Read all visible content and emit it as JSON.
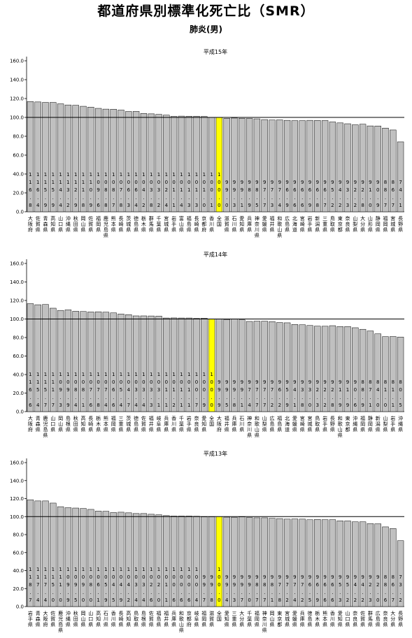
{
  "title": "都道府県別標準化死亡比（SMR）",
  "subtitle": "肺炎(男)",
  "colors": {
    "bar": "#c0c0c0",
    "highlight": "#ffff00",
    "stroke": "#000000"
  },
  "chart_data": [
    {
      "type": "bar",
      "title": "平成15年",
      "xlabel": "",
      "ylabel": "",
      "ylim": [
        0,
        160
      ],
      "yticks": [
        "0.0",
        "20.0",
        "40.0",
        "60.0",
        "80.0",
        "100.0",
        "120.0",
        "140.0",
        "160.0"
      ],
      "reference_line": 100,
      "highlight_category": "全国",
      "categories": [
        "大阪府",
        "佐賀県",
        "青森県",
        "高知県",
        "山口県",
        "沖縄県",
        "秋田県",
        "岡山県",
        "佐賀県",
        "福岡県",
        "鹿児島県",
        "熊本県",
        "長崎県",
        "茨城県",
        "徳島県",
        "栃木県",
        "群馬県",
        "千葉県",
        "宮城県",
        "岩手県",
        "富山県",
        "福島県",
        "長崎県",
        "京都府",
        "香川県",
        "全国",
        "滋賀県",
        "石川県",
        "愛知県",
        "兵庫県",
        "神奈川県",
        "愛媛県",
        "福井県",
        "和歌山県",
        "広島県",
        "北海道",
        "宮崎県",
        "岩手県",
        "新潟県",
        "三重県",
        "鳥取県",
        "東京都",
        "奈良県",
        "山梨県",
        "大分県",
        "山形県",
        "静岡県",
        "福岡県",
        "宮城県",
        "長野県"
      ],
      "values": [
        116.8,
        116.4,
        115.9,
        115.9,
        114.4,
        113.2,
        112.9,
        111.8,
        110.9,
        109.6,
        108.8,
        108.7,
        107.8,
        106.3,
        106.4,
        104.2,
        103.8,
        103.2,
        102.4,
        101.1,
        101.4,
        101.3,
        101.3,
        101.0,
        100.1,
        100.0,
        99.0,
        99.3,
        99.1,
        98.9,
        98.5,
        97.7,
        97.3,
        97.4,
        96.9,
        96.6,
        96.6,
        96.9,
        96.8,
        96.7,
        95.2,
        94.2,
        93.3,
        92.2,
        92.8,
        91.0,
        90.9,
        88.7,
        86.7,
        74.1
      ],
      "values_text": [
        "116.8",
        "116.4",
        "115.9",
        "115.9",
        "114.4",
        "113.2",
        "112.9",
        "111.8",
        "110.9",
        "109.6",
        "108.8",
        "108.7",
        "107.8",
        "106.3",
        "106.4",
        "104.2",
        "103.8",
        "103.2",
        "102.4",
        "101.1",
        "101.4",
        "101.3",
        "101.3",
        "101.0",
        "100.1",
        "100.0",
        "99.0",
        "99.3",
        "99.1",
        "98.9",
        "98.5",
        "97.7",
        "97.3",
        "97.4",
        "96.9",
        "96.6",
        "96.6",
        "96.9",
        "96.8",
        "96.7",
        "95.2",
        "94.2",
        "93.3",
        "92.2",
        "92.8",
        "91.0",
        "90.9",
        "88.7",
        "86.7",
        "74.1"
      ]
    },
    {
      "type": "bar",
      "title": "平成14年",
      "xlabel": "",
      "ylabel": "",
      "ylim": [
        0,
        160
      ],
      "yticks": [
        "0.0",
        "20.0",
        "40.0",
        "60.0",
        "80.0",
        "100.0",
        "120.0",
        "140.0",
        "160.0"
      ],
      "reference_line": 100,
      "highlight_category": "全国",
      "categories": [
        "大阪府",
        "青森県",
        "鹿児島県",
        "山口県",
        "岡山県",
        "島根県",
        "秋田県",
        "高知県",
        "長崎県",
        "栃木県",
        "熊本県",
        "福岡県",
        "三重県",
        "茨城県",
        "徳島県",
        "佐賀県",
        "福井県",
        "岐阜県",
        "兵庫県",
        "香川県",
        "千葉県",
        "岩手県",
        "奈良県",
        "愛知県",
        "全国",
        "大阪府",
        "福井県",
        "兵庫県",
        "石川県",
        "神奈川県",
        "和歌山県",
        "山梨県",
        "広島県",
        "福島県",
        "北海道",
        "愛媛県",
        "宮崎県",
        "宮城県",
        "鳥取県",
        "岩手県",
        "長野県",
        "和歌山県",
        "東京都",
        "沖縄県",
        "福岡県",
        "静岡県",
        "新潟県",
        "山梨県",
        "岩手県",
        "沖縄県"
      ],
      "values": [
        116.6,
        115.4,
        115.7,
        111.7,
        109.3,
        109.9,
        108.4,
        108.1,
        107.6,
        107.8,
        107.4,
        106.6,
        105.4,
        104.7,
        103.4,
        103.4,
        103.3,
        103.1,
        101.1,
        101.2,
        101.1,
        101.1,
        100.7,
        100.9,
        100.0,
        99.9,
        99.5,
        99.8,
        99.1,
        97.4,
        97.7,
        97.7,
        97.2,
        96.2,
        95.9,
        94.1,
        93.8,
        93.0,
        92.3,
        92.2,
        92.8,
        91.9,
        91.9,
        90.6,
        88.9,
        87.1,
        84.0,
        81.0,
        81.1,
        80.5
      ],
      "values_text": [
        "116.6",
        "115.4",
        "115.7",
        "111.7",
        "109.3",
        "109.9",
        "108.4",
        "108.1",
        "107.6",
        "107.8",
        "107.4",
        "106.6",
        "105.4",
        "104.7",
        "103.4",
        "103.4",
        "103.3",
        "103.1",
        "101.1",
        "101.2",
        "101.1",
        "101.1",
        "100.7",
        "100.9",
        "100.0",
        "99.9",
        "99.5",
        "99.8",
        "99.1",
        "97.4",
        "97.7",
        "97.7",
        "97.2",
        "96.2",
        "95.9",
        "94.1",
        "93.8",
        "93.0",
        "92.3",
        "92.2",
        "92.8",
        "91.9",
        "91.9",
        "90.6",
        "88.9",
        "87.1",
        "84.0",
        "81.0",
        "81.1",
        "80.5"
      ]
    },
    {
      "type": "bar",
      "title": "平成13年",
      "xlabel": "",
      "ylabel": "",
      "ylim": [
        0,
        160
      ],
      "yticks": [
        "0.0",
        "20.0",
        "40.0",
        "60.0",
        "80.0",
        "100.0",
        "120.0",
        "140.0",
        "160.0"
      ],
      "reference_line": 100,
      "highlight_category": "全国",
      "categories": [
        "岩手県",
        "青森県",
        "大阪府",
        "佐賀県",
        "鹿児島県",
        "沖縄県",
        "秋田県",
        "岡山県",
        "山口県",
        "高知県",
        "石川県",
        "香川県",
        "長崎県",
        "高知県",
        "鳥取県",
        "島根県",
        "佐賀県",
        "福島県",
        "福井県",
        "兵庫県",
        "和歌山県",
        "京都府",
        "岐阜県",
        "福岡県",
        "滋賀県",
        "全国",
        "愛知県",
        "三重県",
        "大分県",
        "千葉県",
        "福岡県",
        "神奈川県",
        "岡山県",
        "東京都",
        "宮城県",
        "愛媛県",
        "兵庫県",
        "徳島県",
        "栃木県",
        "熊本県",
        "香川県",
        "愛知県",
        "山口県",
        "奈良県",
        "佐賀県",
        "群馬県",
        "広島県",
        "奈良県",
        "大分県",
        "長野県"
      ],
      "values": [
        118.7,
        117.4,
        117.4,
        115.0,
        111.0,
        109.9,
        109.5,
        109.0,
        108.0,
        106.1,
        105.9,
        104.5,
        104.9,
        104.2,
        103.4,
        103.4,
        102.6,
        102.0,
        101.1,
        100.6,
        100.6,
        100.6,
        100.4,
        99.7,
        99.8,
        100.0,
        99.4,
        99.3,
        99.7,
        99.0,
        98.7,
        98.7,
        98.1,
        97.8,
        97.2,
        97.4,
        97.2,
        96.5,
        96.9,
        96.6,
        96.6,
        95.3,
        95.2,
        94.2,
        94.2,
        92.3,
        92.0,
        88.6,
        86.7,
        73.2
      ],
      "values_text": [
        "118.7",
        "117.4",
        "117.4",
        "115.0",
        "111.0",
        "109.9",
        "109.5",
        "109.0",
        "108.0",
        "106.1",
        "105.9",
        "104.5",
        "104.9",
        "104.2",
        "103.4",
        "103.4",
        "102.6",
        "102.0",
        "101.1",
        "100.6",
        "100.6",
        "100.6",
        "100.4",
        "99.7",
        "99.8",
        "100.0",
        "99.4",
        "99.3",
        "99.7",
        "99.0",
        "98.7",
        "98.7",
        "98.1",
        "97.8",
        "97.2",
        "97.4",
        "97.2",
        "96.5",
        "96.9",
        "96.6",
        "96.6",
        "95.3",
        "95.2",
        "94.2",
        "94.2",
        "92.3",
        "92.0",
        "88.6",
        "86.7",
        "73.2"
      ]
    }
  ]
}
